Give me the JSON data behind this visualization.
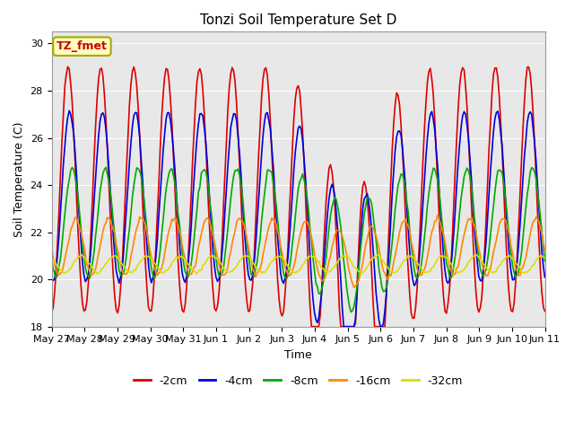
{
  "title": "Tonzi Soil Temperature Set D",
  "xlabel": "Time",
  "ylabel": "Soil Temperature (C)",
  "ylim": [
    18,
    30.5
  ],
  "yticks": [
    18,
    20,
    22,
    24,
    26,
    28,
    30
  ],
  "legend_label": "TZ_fmet",
  "series_labels": [
    "-2cm",
    "-4cm",
    "-8cm",
    "-16cm",
    "-32cm"
  ],
  "series_colors": [
    "#dd0000",
    "#0000dd",
    "#00aa00",
    "#ff8800",
    "#dddd00"
  ],
  "xtick_labels": [
    "May 27",
    "May 28",
    "May 29",
    "May 30",
    "May 31",
    "Jun 1",
    "Jun 2",
    "Jun 3",
    "Jun 4",
    "Jun 5",
    "Jun 6",
    "Jun 7",
    "Jun 8",
    "Jun 9",
    "Jun 10",
    "Jun 11"
  ],
  "plot_background": "#e8e8e8",
  "n_points": 337,
  "days": 15
}
